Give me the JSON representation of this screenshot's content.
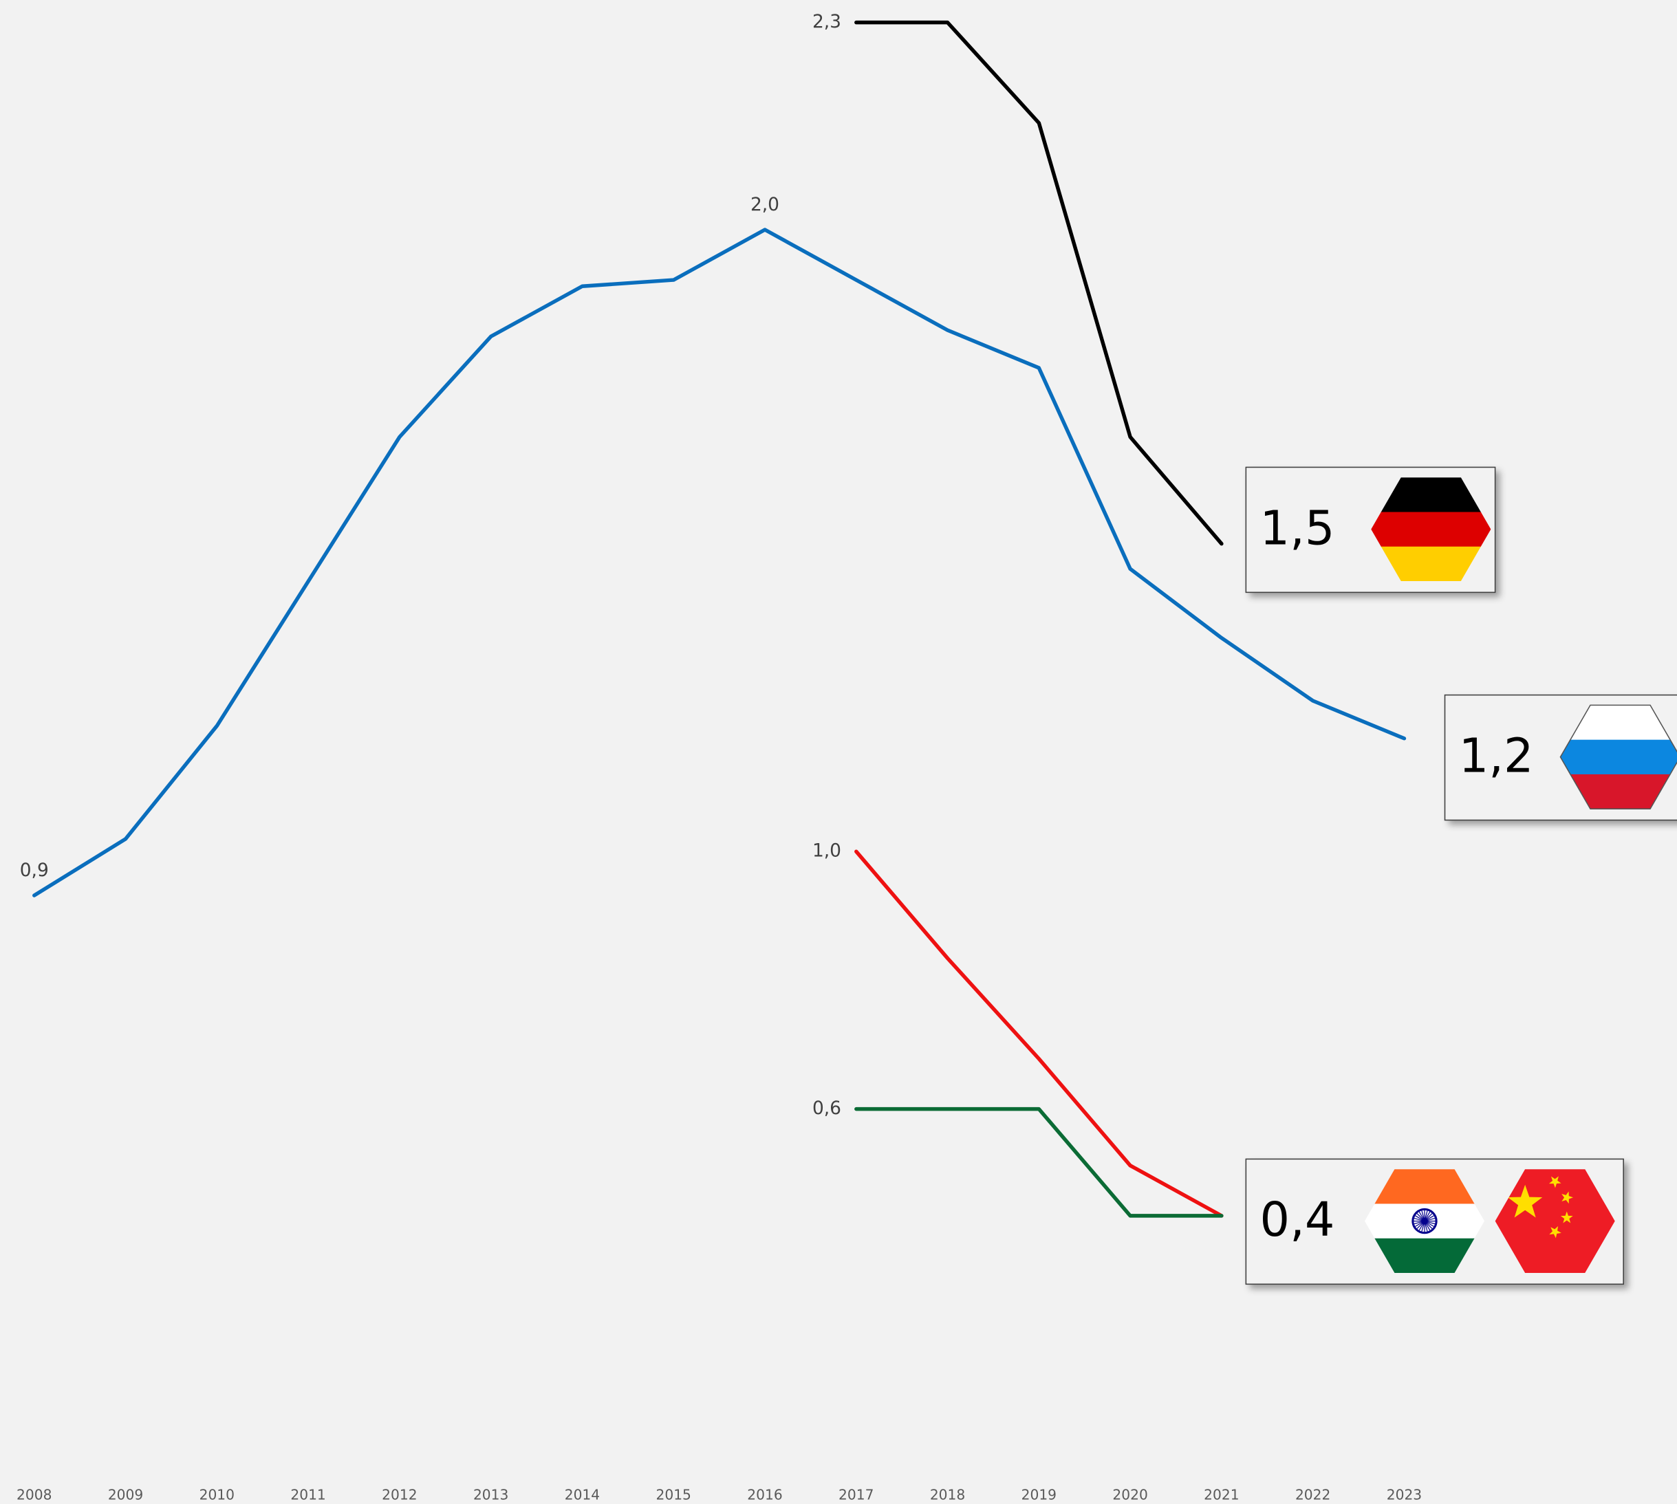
{
  "chart_data": {
    "type": "line",
    "x": [
      2008,
      2009,
      2010,
      2011,
      2012,
      2013,
      2014,
      2015,
      2016,
      2017,
      2018,
      2019,
      2020,
      2021,
      2022,
      2023
    ],
    "ylim": [
      0,
      2.3
    ],
    "series": [
      {
        "color": "#0a6ebd",
        "values": [
          0.91,
          1.0,
          1.18,
          1.41,
          1.64,
          1.8,
          1.88,
          1.89,
          1.97,
          1.89,
          1.81,
          1.75,
          1.43,
          1.32,
          1.22,
          1.16
        ],
        "value_labels": [
          "0,9",
          null,
          null,
          null,
          null,
          null,
          null,
          null,
          "2,0",
          null,
          null,
          null,
          null,
          null,
          null,
          "1,2"
        ]
      },
      {
        "color": "#000000",
        "values": [
          null,
          null,
          null,
          null,
          null,
          null,
          null,
          null,
          null,
          2.3,
          2.3,
          2.14,
          1.64,
          1.47,
          null,
          null
        ],
        "value_labels": [
          null,
          null,
          null,
          null,
          null,
          null,
          null,
          null,
          null,
          "2,3",
          null,
          null,
          null,
          "1,5",
          null,
          null
        ]
      },
      {
        "color": "#ee1111",
        "values": [
          null,
          null,
          null,
          null,
          null,
          null,
          null,
          null,
          null,
          0.98,
          0.81,
          0.65,
          0.48,
          0.4,
          null,
          null
        ],
        "value_labels": [
          null,
          null,
          null,
          null,
          null,
          null,
          null,
          null,
          null,
          "1,0",
          null,
          null,
          null,
          null,
          null,
          null
        ]
      },
      {
        "color": "#0b6b35",
        "values": [
          null,
          null,
          null,
          null,
          null,
          null,
          null,
          null,
          null,
          0.57,
          0.57,
          0.57,
          0.4,
          0.4,
          null,
          null
        ],
        "value_labels": [
          null,
          null,
          null,
          null,
          null,
          null,
          null,
          null,
          null,
          "0,6",
          null,
          null,
          null,
          "0,4",
          null,
          null
        ]
      }
    ]
  }
}
